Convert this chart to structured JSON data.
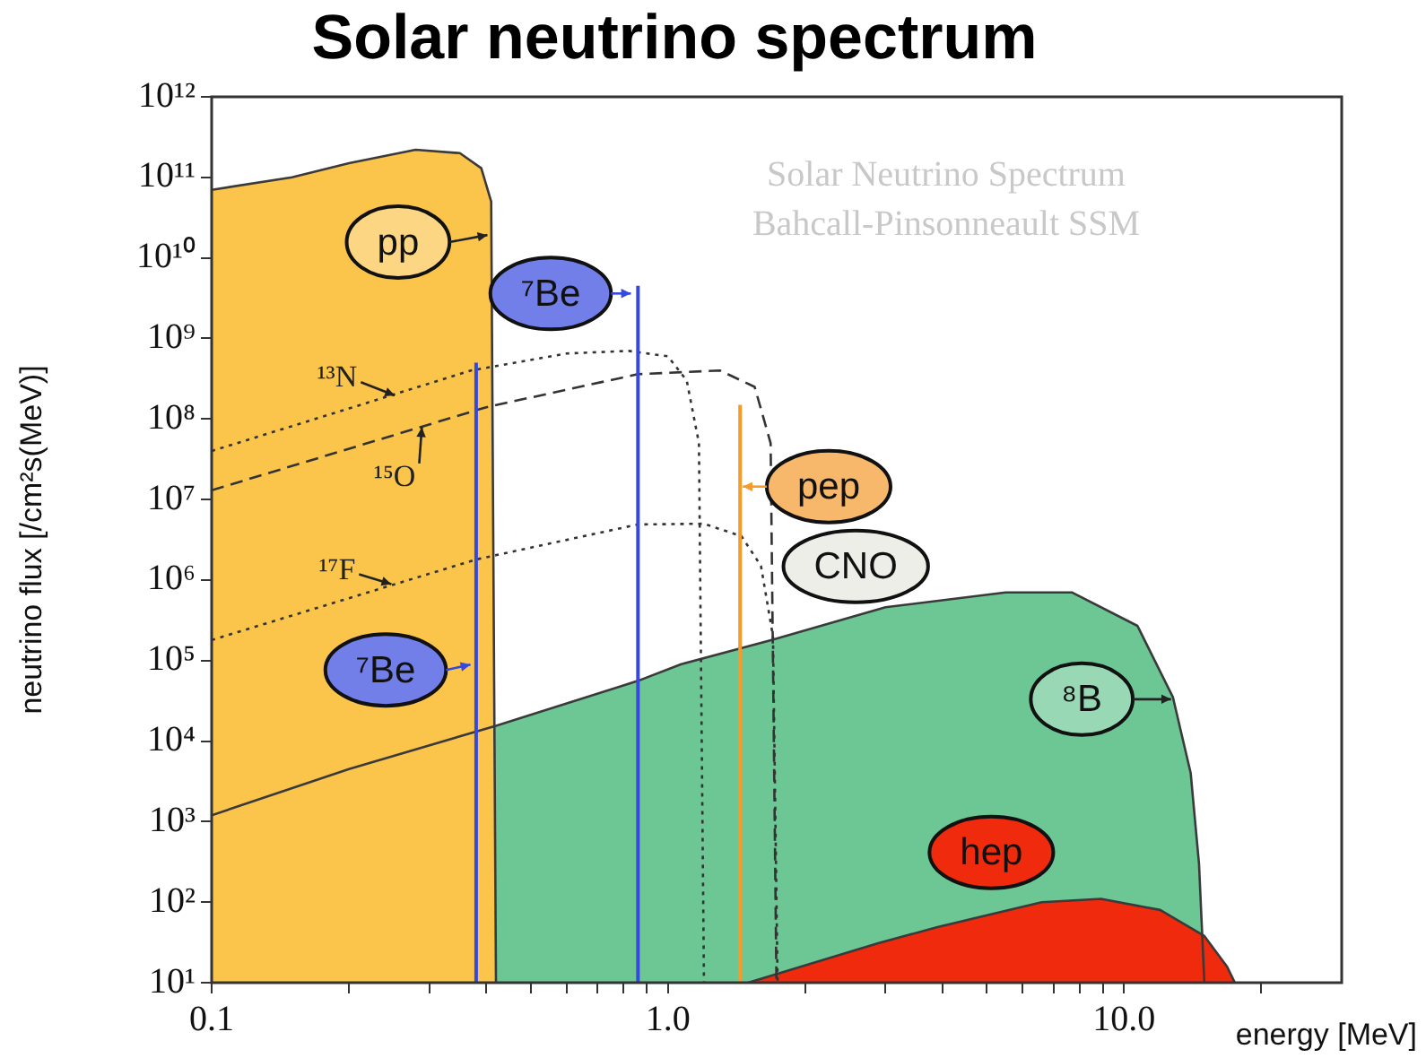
{
  "chart_data": {
    "type": "area",
    "title": "Solar neutrino spectrum",
    "xlabel": "energy [MeV]",
    "ylabel": "neutrino flux [/cm²s(MeV)]",
    "log": "xy",
    "grid": false,
    "marker": "none",
    "xlim": [
      0.1,
      30
    ],
    "ylim": [
      10,
      1000000000000.0
    ],
    "xticks": [
      {
        "value": 0.1,
        "label": "0.1"
      },
      {
        "value": 0.2,
        "label": null
      },
      {
        "value": 0.3,
        "label": null
      },
      {
        "value": 0.4,
        "label": null
      },
      {
        "value": 0.5,
        "label": null
      },
      {
        "value": 0.6,
        "label": null
      },
      {
        "value": 0.7,
        "label": null
      },
      {
        "value": 0.8,
        "label": null
      },
      {
        "value": 0.9,
        "label": null
      },
      {
        "value": 1,
        "label": "1.0"
      },
      {
        "value": 2,
        "label": null
      },
      {
        "value": 3,
        "label": null
      },
      {
        "value": 4,
        "label": null
      },
      {
        "value": 5,
        "label": null
      },
      {
        "value": 6,
        "label": null
      },
      {
        "value": 7,
        "label": null
      },
      {
        "value": 8,
        "label": null
      },
      {
        "value": 9,
        "label": null
      },
      {
        "value": 10,
        "label": "10.0"
      },
      {
        "value": 20,
        "label": null
      }
    ],
    "yticks": [
      {
        "value": 10,
        "label": "10¹"
      },
      {
        "value": 100,
        "label": "10²"
      },
      {
        "value": 1000.0,
        "label": "10³"
      },
      {
        "value": 10000.0,
        "label": "10⁴"
      },
      {
        "value": 100000.0,
        "label": "10⁵"
      },
      {
        "value": 1000000.0,
        "label": "10⁶"
      },
      {
        "value": 10000000.0,
        "label": "10⁷"
      },
      {
        "value": 100000000.0,
        "label": "10⁸"
      },
      {
        "value": 1000000000.0,
        "label": "10⁹"
      },
      {
        "value": 10000000000.0,
        "label": "10¹⁰"
      },
      {
        "value": 100000000000.0,
        "label": "10¹¹"
      },
      {
        "value": 1000000000000.0,
        "label": "10¹²"
      }
    ],
    "annotations": [
      "Solar Neutrino Spectrum",
      "Bahcall-Pinsonneault SSM",
      "CNO"
    ],
    "series": [
      {
        "name": "pp",
        "type": "area",
        "color": "#fbc54c",
        "x": [
          0.1,
          0.15,
          0.2,
          0.28,
          0.35,
          0.39,
          0.41,
          0.42
        ],
        "values": [
          70000000000.0,
          100000000000.0,
          150000000000.0,
          220000000000.0,
          200000000000.0,
          130000000000.0,
          50000000000.0,
          10
        ]
      },
      {
        "name": "⁷Be",
        "type": "line",
        "color": "#3548e0",
        "x": [
          0.38,
          0.38
        ],
        "values": [
          10,
          500000000.0
        ]
      },
      {
        "name": "⁷Be",
        "type": "line",
        "color": "#3548e0",
        "x": [
          0.86,
          0.86
        ],
        "values": [
          10,
          4500000000.0
        ]
      },
      {
        "name": "pep",
        "type": "line",
        "color": "#f59a2b",
        "x": [
          1.44,
          1.44
        ],
        "values": [
          10,
          150000000.0
        ]
      },
      {
        "name": "¹³N",
        "type": "line",
        "color": "#333333",
        "line_style": "dotted",
        "x": [
          0.1,
          0.2,
          0.37,
          0.6,
          0.82,
          1.0,
          1.1,
          1.17,
          1.2
        ],
        "values": [
          40000000.0,
          135000000.0,
          400000000.0,
          650000000.0,
          700000000.0,
          600000000.0,
          300000000.0,
          50000000.0,
          10
        ]
      },
      {
        "name": "¹⁵O",
        "type": "line",
        "color": "#333333",
        "line_style": "dashed",
        "x": [
          0.1,
          0.4,
          0.86,
          1.3,
          1.55,
          1.68,
          1.73
        ],
        "values": [
          13000000.0,
          140000000.0,
          360000000.0,
          400000000.0,
          250000000.0,
          50000000.0,
          10
        ]
      },
      {
        "name": "¹⁷F",
        "type": "line",
        "color": "#333333",
        "line_style": "dotted",
        "x": [
          0.1,
          0.38,
          0.86,
          1.2,
          1.45,
          1.6,
          1.7,
          1.74
        ],
        "values": [
          180000.0,
          1800000.0,
          4900000.0,
          5000000.0,
          3500000.0,
          1500000.0,
          200000.0,
          10
        ]
      },
      {
        "name": "⁸B",
        "type": "area",
        "color": "#6cc795",
        "x": [
          0.1,
          0.2,
          0.42,
          0.86,
          1.07,
          1.69,
          3.0,
          5.5,
          7.7,
          10.7,
          12.8,
          14,
          14.6,
          15
        ],
        "values": [
          1200.0,
          4500.0,
          15500.0,
          56000.0,
          90000.0,
          180000.0,
          460000.0,
          700000.0,
          700000.0,
          270000.0,
          35000.0,
          4000.0,
          300,
          10
        ]
      },
      {
        "name": "hep",
        "type": "area",
        "color": "#f02a0c",
        "x": [
          1.5,
          2.9,
          3.9,
          6.6,
          8.9,
          12,
          15,
          16.8,
          17.5
        ],
        "values": [
          10,
          31,
          49,
          100,
          110,
          80,
          38,
          16,
          10
        ]
      }
    ]
  }
}
